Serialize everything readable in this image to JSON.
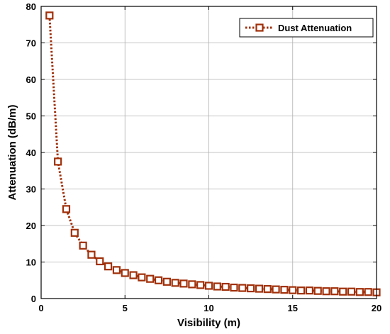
{
  "chart_data": {
    "type": "line",
    "title": "",
    "xlabel": "Visibility (m)",
    "ylabel": "Attenuation (dB/m)",
    "xlim": [
      0,
      20
    ],
    "ylim": [
      0,
      80
    ],
    "xticks": [
      "0",
      "5",
      "10",
      "15",
      "20"
    ],
    "yticks": [
      "0",
      "10",
      "20",
      "30",
      "40",
      "50",
      "60",
      "70",
      "80"
    ],
    "grid": true,
    "legend_position": "top-right",
    "series": [
      {
        "name": "Dust Attenuation",
        "color": "#a0300a",
        "line_style": "dotted",
        "marker": "square",
        "x": [
          0.5,
          1.0,
          1.5,
          2.0,
          2.5,
          3.0,
          3.5,
          4.0,
          4.5,
          5.0,
          5.5,
          6.0,
          6.5,
          7.0,
          7.5,
          8.0,
          8.5,
          9.0,
          9.5,
          10.0,
          10.5,
          11.0,
          11.5,
          12.0,
          12.5,
          13.0,
          13.5,
          14.0,
          14.5,
          15.0,
          15.5,
          16.0,
          16.5,
          17.0,
          17.5,
          18.0,
          18.5,
          19.0,
          19.5,
          20.0
        ],
        "y": [
          77.5,
          37.5,
          24.5,
          18.0,
          14.5,
          12.0,
          10.2,
          8.8,
          7.8,
          7.0,
          6.4,
          5.8,
          5.4,
          5.0,
          4.6,
          4.3,
          4.1,
          3.9,
          3.7,
          3.5,
          3.3,
          3.2,
          3.0,
          2.9,
          2.8,
          2.7,
          2.6,
          2.5,
          2.4,
          2.3,
          2.2,
          2.2,
          2.1,
          2.0,
          2.0,
          1.9,
          1.9,
          1.8,
          1.8,
          1.7
        ]
      }
    ]
  }
}
